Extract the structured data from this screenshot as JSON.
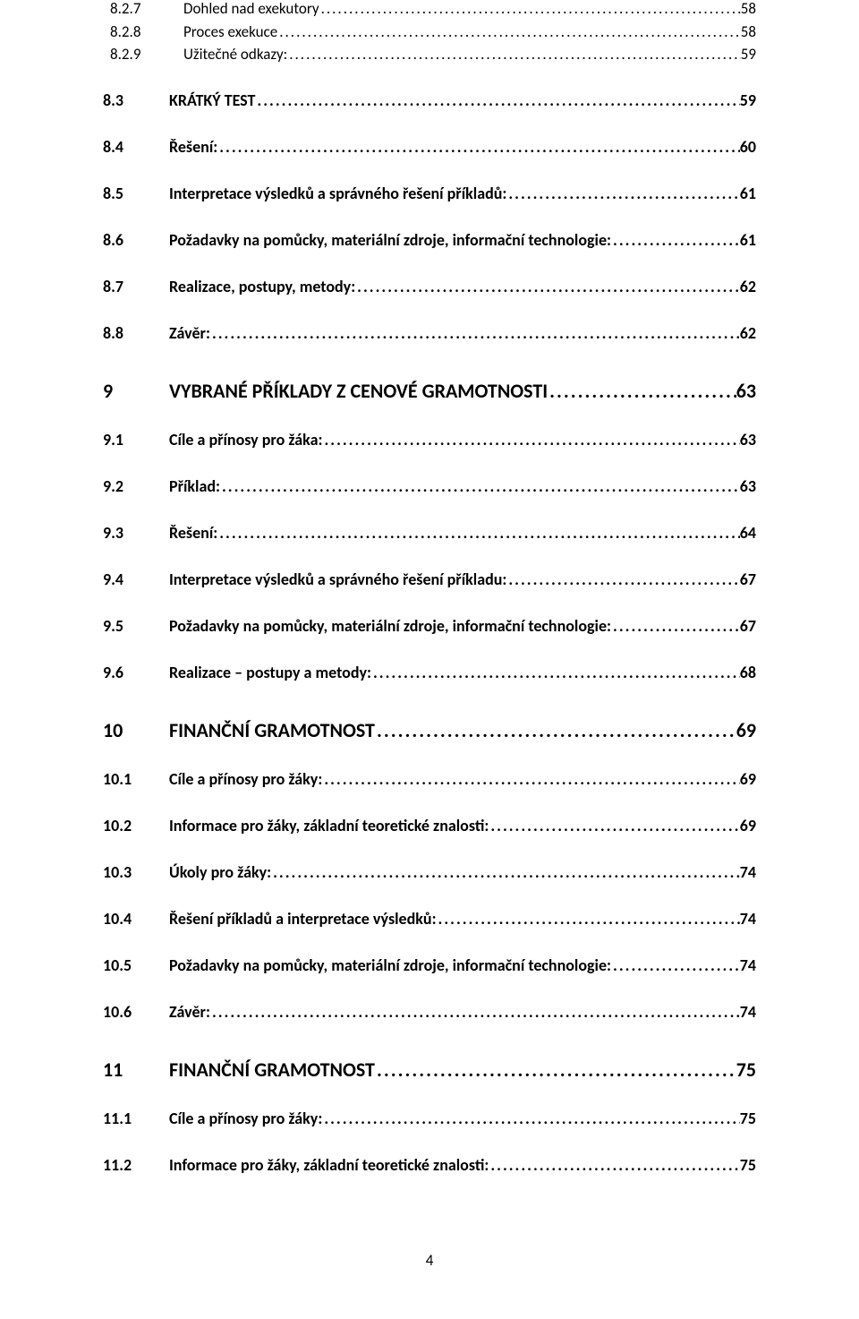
{
  "page_number": "4",
  "leader_dots": "..............................................................................................................................................................................................................................................",
  "entries": [
    {
      "level": 3,
      "num": "8.2.7",
      "title": "Dohled nad exekutory",
      "page": "58"
    },
    {
      "level": 3,
      "num": "8.2.8",
      "title": "Proces exekuce",
      "page": "58"
    },
    {
      "level": 3,
      "num": "8.2.9",
      "title": "Užitečné odkazy:",
      "page": "59"
    },
    {
      "level": 2,
      "num": "8.3",
      "title": "KRÁTKÝ TEST",
      "page": "59"
    },
    {
      "level": 2,
      "num": "8.4",
      "title": "Řešení:",
      "page": "60"
    },
    {
      "level": 2,
      "num": "8.5",
      "title": "Interpretace výsledků a správného řešení příkladů:",
      "page": "61"
    },
    {
      "level": 2,
      "num": "8.6",
      "title": "Požadavky na pomůcky, materiální zdroje, informační technologie:",
      "page": "61"
    },
    {
      "level": 2,
      "num": "8.7",
      "title": "Realizace, postupy, metody:",
      "page": "62"
    },
    {
      "level": 2,
      "num": "8.8",
      "title": "Závěr:",
      "page": "62"
    },
    {
      "level": 1,
      "num": "9",
      "title": "VYBRANÉ  PŘÍKLADY  Z CENOVÉ GRAMOTNOSTI",
      "page": "63"
    },
    {
      "level": 2,
      "num": "9.1",
      "title": "Cíle a přínosy pro žáka:",
      "page": "63"
    },
    {
      "level": 2,
      "num": "9.2",
      "title": "Příklad:",
      "page": "63"
    },
    {
      "level": 2,
      "num": "9.3",
      "title": "Řešení:",
      "page": "64"
    },
    {
      "level": 2,
      "num": "9.4",
      "title": "Interpretace výsledků a správného řešení příkladu:",
      "page": "67"
    },
    {
      "level": 2,
      "num": "9.5",
      "title": "Požadavky na pomůcky, materiální zdroje, informační technologie:",
      "page": "67"
    },
    {
      "level": 2,
      "num": "9.6",
      "title": "Realizace – postupy a metody:",
      "page": "68"
    },
    {
      "level": 1,
      "num": "10",
      "title": "FINANČNÍ GRAMOTNOST",
      "page": "69"
    },
    {
      "level": 2,
      "num": "10.1",
      "title": "Cíle a přínosy pro žáky:",
      "page": "69"
    },
    {
      "level": 2,
      "num": "10.2",
      "title": "Informace pro žáky, základní teoretické znalosti:",
      "page": "69"
    },
    {
      "level": 2,
      "num": "10.3",
      "title": "Úkoly pro žáky:",
      "page": "74"
    },
    {
      "level": 2,
      "num": "10.4",
      "title": "Řešení příkladů a interpretace výsledků:",
      "page": "74"
    },
    {
      "level": 2,
      "num": "10.5",
      "title": "Požadavky na pomůcky, materiální zdroje, informační technologie:",
      "page": "74"
    },
    {
      "level": 2,
      "num": "10.6",
      "title": "Závěr:",
      "page": "74"
    },
    {
      "level": 1,
      "num": "11",
      "title": "FINANČNÍ GRAMOTNOST",
      "page": "75"
    },
    {
      "level": 2,
      "num": "11.1",
      "title": "Cíle a přínosy pro žáky:",
      "page": "75"
    },
    {
      "level": 2,
      "num": "11.2",
      "title": "Informace pro žáky, základní teoretické znalosti:",
      "page": "75"
    }
  ]
}
